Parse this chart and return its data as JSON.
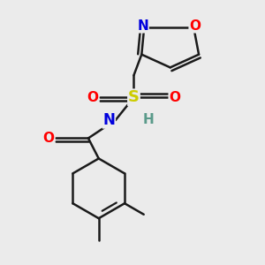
{
  "bg_color": "#ebebeb",
  "bond_color": "#1a1a1a",
  "bond_width": 1.8,
  "figsize": [
    3.0,
    3.0
  ],
  "dpi": 100,
  "colors": {
    "N": "#0000dd",
    "O": "#ff0000",
    "S": "#cccc00",
    "H": "#5a9a8a",
    "C": "#1a1a1a"
  }
}
